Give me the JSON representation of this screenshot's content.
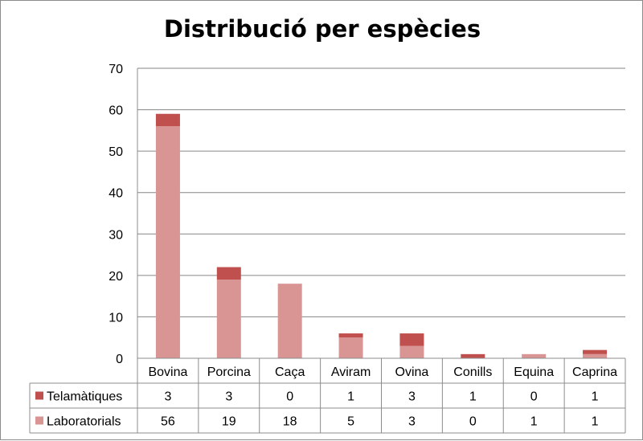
{
  "chart_data": {
    "type": "bar",
    "stacked": true,
    "title": "Distribució per espècies",
    "xlabel": "",
    "ylabel": "",
    "ylim": [
      0,
      70
    ],
    "yticks": [
      0,
      10,
      20,
      30,
      40,
      50,
      60,
      70
    ],
    "grid": true,
    "legend": "data-table-left",
    "categories": [
      "Bovina",
      "Porcina",
      "Caça",
      "Aviram",
      "Ovina",
      "Conills",
      "Equina",
      "Caprina"
    ],
    "series": [
      {
        "name": "Laboratorials",
        "color": "#d99594",
        "values": [
          56,
          19,
          18,
          5,
          3,
          0,
          1,
          1
        ]
      },
      {
        "name": "Telamàtiques",
        "color": "#c0504d",
        "values": [
          3,
          3,
          0,
          1,
          3,
          1,
          0,
          1
        ]
      }
    ],
    "table_rows": [
      {
        "name": "Telamàtiques",
        "color": "#c0504d",
        "values": [
          3,
          3,
          0,
          1,
          3,
          1,
          0,
          1
        ]
      },
      {
        "name": "Laboratorials",
        "color": "#d99594",
        "values": [
          56,
          19,
          18,
          5,
          3,
          0,
          1,
          1
        ]
      }
    ]
  }
}
